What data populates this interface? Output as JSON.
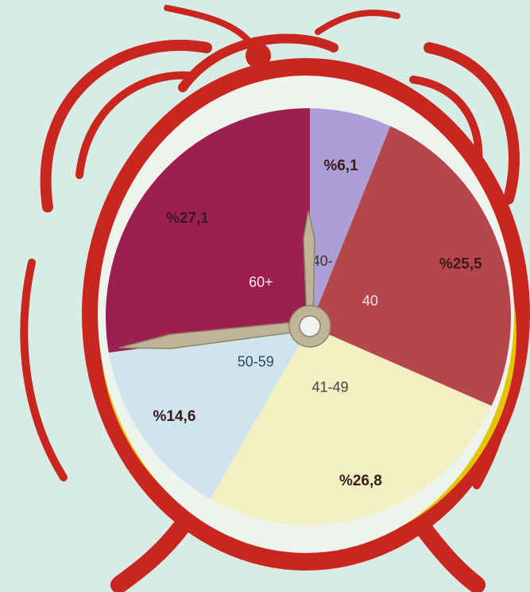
{
  "chart_data": {
    "type": "pie",
    "categories": [
      "40-",
      "40",
      "41-49",
      "50-59",
      "60+"
    ],
    "values": [
      6.1,
      25.5,
      26.8,
      14.6,
      27.1
    ],
    "value_labels": [
      "%6,1",
      "%25,5",
      "%26,8",
      "%14,6",
      "%27,1"
    ],
    "colors": [
      "#ab9fd6",
      "#b4464c",
      "#f2efc2",
      "#cfe4ee",
      "#9c1f50"
    ]
  }
}
